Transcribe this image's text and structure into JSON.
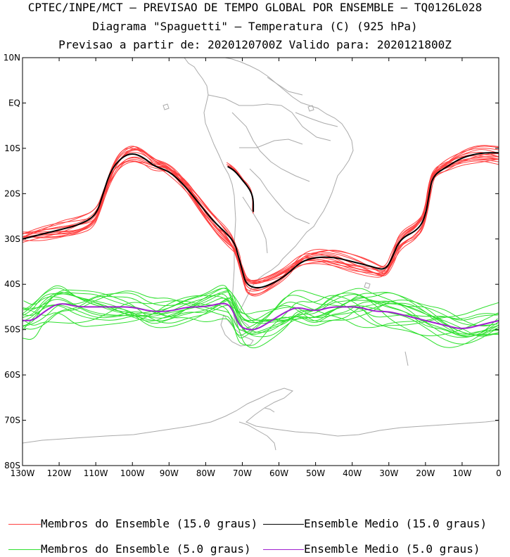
{
  "header": {
    "line1": "CPTEC/INPE/MCT – PREVISAO DE TEMPO GLOBAL POR ENSEMBLE – TQ0126L028",
    "line2": "Diagrama \"Spaguetti\" – Temperatura (C) (925 hPa)",
    "line3": "Previsao a partir de: 2020120700Z  Valido para: 2020121800Z"
  },
  "map": {
    "lat_labels": [
      "10N",
      "EQ",
      "10S",
      "20S",
      "30S",
      "40S",
      "50S",
      "60S",
      "70S",
      "80S"
    ],
    "lon_labels": [
      "130W",
      "120W",
      "110W",
      "100W",
      "90W",
      "80W",
      "70W",
      "60W",
      "50W",
      "40W",
      "30W",
      "20W",
      "10W",
      "0"
    ],
    "lat_range": [
      -80,
      10
    ],
    "lon_range": [
      -130,
      0
    ]
  },
  "legend": {
    "members15_label": "Membros do Ensemble (15.0 graus)",
    "mean15_label": "Ensemble Medio (15.0 graus)",
    "members5_label": "Membros do Ensemble (5.0 graus)",
    "mean5_label": "Ensemble Medio (5.0 graus)"
  },
  "colors": {
    "members15": "#ff4040",
    "mean15": "#000000",
    "members5": "#2fe02f",
    "mean5": "#a020d0",
    "land": "#aaaaaa"
  },
  "chart_data": {
    "type": "line",
    "series": [
      {
        "name": "Ensemble Medio (15.0 graus)",
        "points": [
          [
            -130,
            -30
          ],
          [
            -125,
            -29
          ],
          [
            -120,
            -28
          ],
          [
            -115,
            -27
          ],
          [
            -110,
            -25
          ],
          [
            -108,
            -20
          ],
          [
            -106,
            -15
          ],
          [
            -103,
            -12
          ],
          [
            -100,
            -11
          ],
          [
            -97,
            -12
          ],
          [
            -94,
            -14
          ],
          [
            -90,
            -15
          ],
          [
            -86,
            -18
          ],
          [
            -82,
            -22
          ],
          [
            -78,
            -26
          ],
          [
            -74,
            -29
          ],
          [
            -72,
            -31
          ],
          [
            -71,
            -34
          ],
          [
            -70,
            -37
          ],
          [
            -69,
            -40
          ],
          [
            -66,
            -41
          ],
          [
            -62,
            -40
          ],
          [
            -58,
            -38
          ],
          [
            -54,
            -35
          ],
          [
            -50,
            -34
          ],
          [
            -45,
            -34
          ],
          [
            -40,
            -35
          ],
          [
            -35,
            -36
          ],
          [
            -31,
            -37
          ],
          [
            -29,
            -34
          ],
          [
            -27,
            -30
          ],
          [
            -22,
            -28
          ],
          [
            -20,
            -25
          ],
          [
            -19,
            -20
          ],
          [
            -18,
            -16
          ],
          [
            -14,
            -14
          ],
          [
            -10,
            -12
          ],
          [
            -5,
            -11
          ],
          [
            0,
            -11
          ]
        ]
      },
      {
        "name": "Ensemble Medio (15.0 graus) - Andes",
        "points": [
          [
            -74,
            -14
          ],
          [
            -72,
            -15
          ],
          [
            -70,
            -17
          ],
          [
            -68,
            -19
          ],
          [
            -67,
            -21
          ],
          [
            -67,
            -24
          ]
        ]
      },
      {
        "name": "Ensemble Medio (5.0 graus)",
        "points": [
          [
            -130,
            -48
          ],
          [
            -127,
            -48
          ],
          [
            -124,
            -46
          ],
          [
            -120,
            -44
          ],
          [
            -115,
            -45
          ],
          [
            -110,
            -45
          ],
          [
            -105,
            -45
          ],
          [
            -100,
            -45
          ],
          [
            -95,
            -46
          ],
          [
            -90,
            -46
          ],
          [
            -85,
            -45
          ],
          [
            -80,
            -45
          ],
          [
            -75,
            -44
          ],
          [
            -73,
            -45
          ],
          [
            -71,
            -49
          ],
          [
            -69,
            -50
          ],
          [
            -66,
            -50
          ],
          [
            -62,
            -48
          ],
          [
            -58,
            -46
          ],
          [
            -55,
            -45
          ],
          [
            -50,
            -46
          ],
          [
            -46,
            -45
          ],
          [
            -42,
            -45
          ],
          [
            -38,
            -45
          ],
          [
            -34,
            -46
          ],
          [
            -30,
            -46
          ],
          [
            -25,
            -47
          ],
          [
            -20,
            -48
          ],
          [
            -15,
            -49
          ],
          [
            -10,
            -50
          ],
          [
            -5,
            -49
          ],
          [
            0,
            -48
          ]
        ]
      }
    ],
    "xlabel": "",
    "ylabel": "",
    "xlim": [
      -130,
      0
    ],
    "ylim": [
      -80,
      10
    ]
  }
}
